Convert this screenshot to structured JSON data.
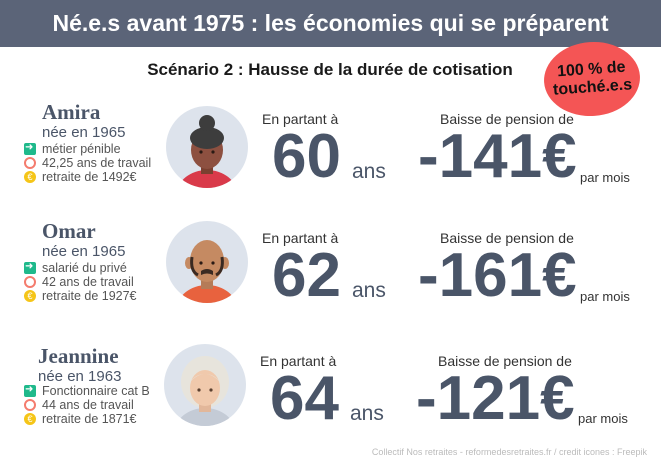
{
  "header": {
    "title": "Né.e.s avant 1975 : les économies qui se préparent"
  },
  "subtitle": "Scénario 2 : Hausse de la durée de cotisation",
  "badge": {
    "line1": "100 % de",
    "line2": "touché.e.s",
    "color": "#f45555"
  },
  "colors": {
    "header_bg": "#5b6478",
    "text": "#4a5568",
    "icon_job": "#1fb98b",
    "icon_clock": "#f47c6e",
    "icon_coin": "#f5c518"
  },
  "people": [
    {
      "name": "Amira",
      "birth": "née en 1965",
      "job": "métier pénible",
      "years": "42,25 ans de travail",
      "pension": "retraite de 1492€",
      "departure_label": "En partant à",
      "age": "60",
      "age_unit": "ans",
      "drop_label": "Baisse de pension de",
      "drop": "-141€",
      "per_month": "par mois",
      "avatar": "woman-bun-avatar"
    },
    {
      "name": "Omar",
      "birth": "née en 1965",
      "job": "salarié du privé",
      "years": "42 ans de travail",
      "pension": "retraite de 1927€",
      "departure_label": "En partant à",
      "age": "62",
      "age_unit": "ans",
      "drop_label": "Baisse de pension de",
      "drop": "-161€",
      "per_month": "par mois",
      "avatar": "bald-man-avatar"
    },
    {
      "name": "Jeannine",
      "birth": "née en 1963",
      "job": "Fonctionnaire cat B",
      "years": "44 ans de travail",
      "pension": "retraite de 1871€",
      "departure_label": "En partant à",
      "age": "64",
      "age_unit": "ans",
      "drop_label": "Baisse de pension de",
      "drop": "-121€",
      "per_month": "par mois",
      "avatar": "old-woman-avatar"
    }
  ],
  "footer": "Collectif Nos retraites - reformedesretraites.fr  / credit icones : Freepik"
}
